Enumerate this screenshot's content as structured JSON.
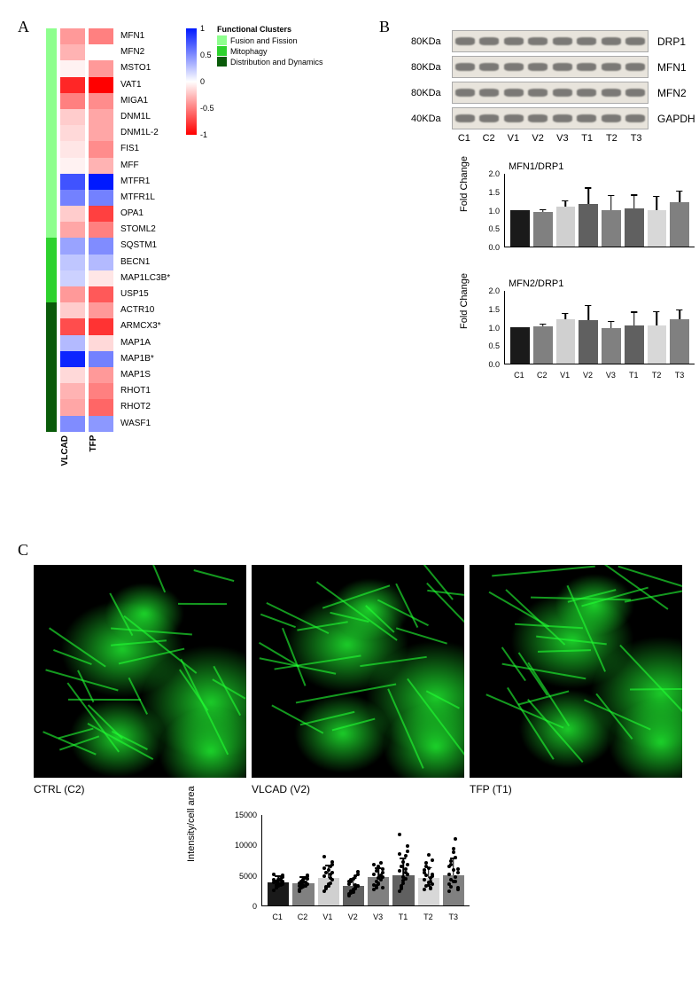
{
  "panel_labels": {
    "A": "A",
    "B": "B",
    "C": "C"
  },
  "heatmap": {
    "color_scale": {
      "min": -1,
      "max": 1,
      "ticks": [
        -1,
        -0.5,
        0,
        0.5,
        1
      ],
      "colors": {
        "min": "#ff0000",
        "mid": "#ffffff",
        "max": "#0019ff"
      }
    },
    "column_labels": [
      "VLCAD",
      "TFP"
    ],
    "cluster_legend": {
      "title": "Functional Clusters",
      "items": [
        {
          "label": "Fusion and Fission",
          "color": "#8eff8e"
        },
        {
          "label": "Mitophagy",
          "color": "#2dd22d"
        },
        {
          "label": "Distribution and Dynamics",
          "color": "#0a5b0a"
        }
      ]
    },
    "rows": [
      {
        "gene": "MFN1",
        "cluster": 0,
        "vals": [
          -0.4,
          -0.5
        ]
      },
      {
        "gene": "MFN2",
        "cluster": 0,
        "vals": [
          -0.3,
          0.0
        ]
      },
      {
        "gene": "MSTO1",
        "cluster": 0,
        "vals": [
          -0.05,
          -0.4
        ]
      },
      {
        "gene": "VAT1",
        "cluster": 0,
        "vals": [
          -0.85,
          -1.0
        ]
      },
      {
        "gene": "MIGA1",
        "cluster": 0,
        "vals": [
          -0.5,
          -0.45
        ]
      },
      {
        "gene": "DNM1L",
        "cluster": 0,
        "vals": [
          -0.2,
          -0.35
        ]
      },
      {
        "gene": "DNM1L-2",
        "cluster": 0,
        "vals": [
          -0.15,
          -0.35
        ]
      },
      {
        "gene": "FIS1",
        "cluster": 0,
        "vals": [
          -0.1,
          -0.45
        ]
      },
      {
        "gene": "MFF",
        "cluster": 0,
        "vals": [
          -0.05,
          -0.3
        ]
      },
      {
        "gene": "MTFR1",
        "cluster": 0,
        "vals": [
          0.75,
          1.0
        ]
      },
      {
        "gene": "MTFR1L",
        "cluster": 0,
        "vals": [
          0.55,
          0.55
        ]
      },
      {
        "gene": "OPA1",
        "cluster": 0,
        "vals": [
          -0.2,
          -0.75
        ]
      },
      {
        "gene": "STOML2",
        "cluster": 0,
        "vals": [
          -0.35,
          -0.5
        ]
      },
      {
        "gene": "SQSTM1",
        "cluster": 1,
        "vals": [
          0.4,
          0.5
        ]
      },
      {
        "gene": "BECN1",
        "cluster": 1,
        "vals": [
          0.25,
          0.3
        ]
      },
      {
        "gene": "MAP1LC3B*",
        "cluster": 1,
        "vals": [
          0.2,
          -0.1
        ]
      },
      {
        "gene": "USP15",
        "cluster": 1,
        "vals": [
          -0.4,
          -0.65
        ]
      },
      {
        "gene": "ACTR10",
        "cluster": 2,
        "vals": [
          -0.2,
          -0.4
        ]
      },
      {
        "gene": "ARMCX3*",
        "cluster": 2,
        "vals": [
          -0.7,
          -0.8
        ]
      },
      {
        "gene": "MAP1A",
        "cluster": 2,
        "vals": [
          0.3,
          -0.15
        ]
      },
      {
        "gene": "MAP1B*",
        "cluster": 2,
        "vals": [
          0.95,
          0.55
        ]
      },
      {
        "gene": "MAP1S",
        "cluster": 2,
        "vals": [
          -0.15,
          -0.4
        ]
      },
      {
        "gene": "RHOT1",
        "cluster": 2,
        "vals": [
          -0.3,
          -0.5
        ]
      },
      {
        "gene": "RHOT2",
        "cluster": 2,
        "vals": [
          -0.35,
          -0.6
        ]
      },
      {
        "gene": "WASF1",
        "cluster": 2,
        "vals": [
          0.5,
          0.45
        ]
      }
    ]
  },
  "western_blot": {
    "rows": [
      {
        "kda": "80KDa",
        "protein": "DRP1"
      },
      {
        "kda": "80KDa",
        "protein": "MFN1"
      },
      {
        "kda": "80KDa",
        "protein": "MFN2"
      },
      {
        "kda": "40KDa",
        "protein": "GAPDH"
      }
    ],
    "lanes": [
      "C1",
      "C2",
      "V1",
      "V2",
      "V3",
      "T1",
      "T2",
      "T3"
    ]
  },
  "bar_charts": {
    "ylabel": "Fold Change",
    "ylim": [
      0,
      2.0
    ],
    "yticks": [
      0,
      0.5,
      1.0,
      1.5,
      2.0
    ],
    "categories": [
      "C1",
      "C2",
      "V1",
      "V2",
      "V3",
      "T1",
      "T2",
      "T3"
    ],
    "colors": [
      "#1a1a1a",
      "#808080",
      "#d0d0d0",
      "#606060",
      "#808080",
      "#606060",
      "#d8d8d8",
      "#808080"
    ],
    "series": [
      {
        "title": "MFN1/DRP1",
        "vals": [
          1.0,
          0.95,
          1.1,
          1.18,
          1.0,
          1.05,
          1.0,
          1.22
        ],
        "err": [
          0.0,
          0.08,
          0.18,
          0.45,
          0.42,
          0.38,
          0.4,
          0.32
        ]
      },
      {
        "title": "MFN2/DRP1",
        "vals": [
          1.0,
          1.02,
          1.22,
          1.2,
          0.98,
          1.05,
          1.05,
          1.22
        ],
        "err": [
          0.0,
          0.08,
          0.18,
          0.42,
          0.2,
          0.38,
          0.4,
          0.28
        ]
      }
    ]
  },
  "microscopy": {
    "labels": [
      "CTRL (C2)",
      "VLCAD (V2)",
      "TFP (T1)"
    ],
    "green": "#22ff33"
  },
  "intensity_chart": {
    "ylabel": "Intensity/cell area",
    "ylim": [
      0,
      15000
    ],
    "yticks": [
      0,
      5000,
      10000,
      15000
    ],
    "categories": [
      "C1",
      "C2",
      "V1",
      "V2",
      "V3",
      "T1",
      "T2",
      "T3"
    ],
    "colors": [
      "#1a1a1a",
      "#808080",
      "#d0d0d0",
      "#606060",
      "#808080",
      "#606060",
      "#d8d8d8",
      "#808080"
    ],
    "vals": [
      3800,
      3700,
      4600,
      3200,
      4700,
      5000,
      4600,
      5000
    ],
    "err": [
      1200,
      1100,
      2100,
      1400,
      1600,
      2900,
      1800,
      2900
    ],
    "dots": [
      [
        2500,
        3000,
        3200,
        3400,
        3600,
        3800,
        4000,
        4200,
        4400,
        4700,
        5200,
        3000,
        3300,
        3500,
        3900,
        4300,
        3400,
        3700,
        4100,
        5000
      ],
      [
        2400,
        2900,
        3100,
        3300,
        3500,
        3700,
        3900,
        4200,
        4500,
        5000,
        2700,
        3000,
        3400,
        3800,
        4400,
        3200,
        3600,
        4000,
        4600,
        4800
      ],
      [
        2300,
        2800,
        3200,
        3700,
        4200,
        4800,
        5400,
        5900,
        6500,
        7200,
        8100,
        3100,
        3600,
        4500,
        5500,
        6200,
        2900,
        3300,
        5100,
        6800
      ],
      [
        1600,
        2000,
        2400,
        2800,
        3200,
        3600,
        4000,
        4400,
        4800,
        5600,
        1900,
        2300,
        2700,
        3000,
        3300,
        3900,
        4300,
        2200,
        3400,
        5100
      ],
      [
        2700,
        3200,
        3700,
        4200,
        4700,
        5200,
        5700,
        6400,
        7100,
        2900,
        3400,
        4000,
        4500,
        5000,
        6000,
        6800,
        3000,
        3500,
        4800,
        5500
      ],
      [
        2300,
        3000,
        3700,
        4400,
        5100,
        5800,
        6500,
        7200,
        8200,
        9800,
        11800,
        2800,
        4100,
        5400,
        6800,
        8600,
        3300,
        4700,
        6100,
        9000
      ],
      [
        2600,
        3200,
        3800,
        4500,
        5200,
        5900,
        7000,
        8400,
        3000,
        3500,
        4200,
        5000,
        6200,
        2800,
        4800,
        5500,
        6500,
        3400,
        4000,
        7500
      ],
      [
        2300,
        3100,
        3900,
        4700,
        5500,
        6400,
        7400,
        8800,
        11000,
        2700,
        3500,
        4300,
        5900,
        7900,
        3000,
        5100,
        6800,
        9400,
        4000,
        6000
      ]
    ]
  }
}
